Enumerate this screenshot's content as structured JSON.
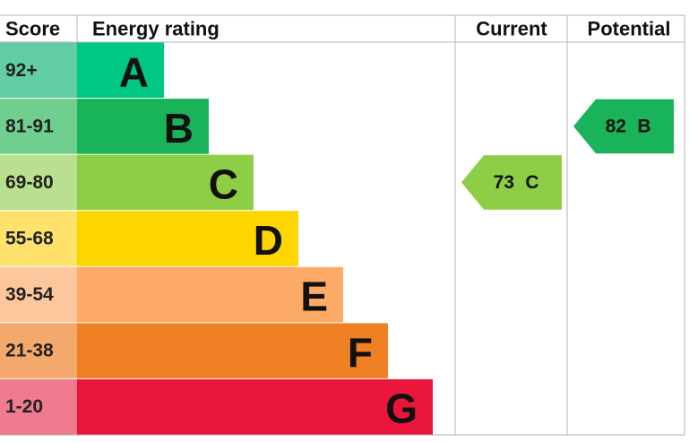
{
  "headers": {
    "score": "Score",
    "rating": "Energy rating",
    "current": "Current",
    "potential": "Potential"
  },
  "bands": [
    {
      "score": "92+",
      "rating": "A",
      "color": "#00c781",
      "score_color": "#62cca5"
    },
    {
      "score": "81-91",
      "rating": "B",
      "color": "#19b459",
      "score_color": "#70cf8e"
    },
    {
      "score": "69-80",
      "rating": "C",
      "color": "#8dce46",
      "score_color": "#b9e08e"
    },
    {
      "score": "55-68",
      "rating": "D",
      "color": "#ffd500",
      "score_color": "#ffe26c"
    },
    {
      "score": "39-54",
      "rating": "E",
      "color": "#fcaa65",
      "score_color": "#fdc79d"
    },
    {
      "score": "21-38",
      "rating": "F",
      "color": "#ef8023",
      "score_color": "#f4a96c"
    },
    {
      "score": "1-20",
      "rating": "G",
      "color": "#e9153b",
      "score_color": "#f07a8e"
    }
  ],
  "current": {
    "value": 73,
    "rating": "C"
  },
  "potential": {
    "value": 82,
    "rating": "B"
  }
}
